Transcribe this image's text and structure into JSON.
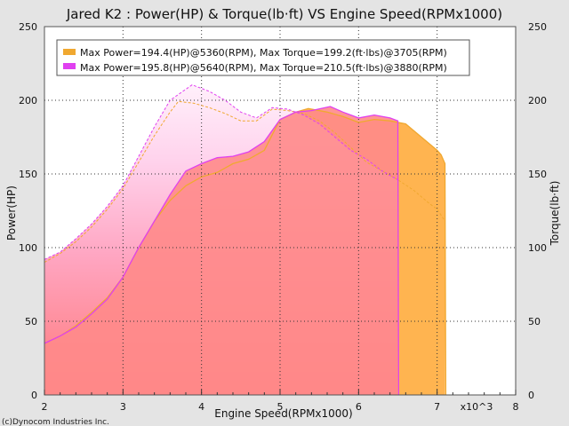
{
  "chart_data": {
    "type": "line",
    "title": "Jared K2 : Power(HP) & Torque(lb·ft) VS Engine Speed(RPMx1000)",
    "xlabel": "Engine Speed(RPMx1000)",
    "ylabel": "Power(HP)",
    "y2label": "Torque(lb·ft)",
    "xlim": [
      2,
      8
    ],
    "ylim": [
      0,
      250
    ],
    "y2lim": [
      0,
      250
    ],
    "x_ticks": [
      "2",
      "3",
      "4",
      "5",
      "6",
      "7",
      "8"
    ],
    "x_multiplier": "x10^3",
    "y_ticks": [
      "0",
      "50",
      "100",
      "150",
      "200",
      "250"
    ],
    "y2_ticks": [
      "0",
      "50",
      "100",
      "150",
      "200",
      "250"
    ],
    "grid": true,
    "legend_position": "top-left",
    "series": [
      {
        "name": "Max Power=194.4(HP)@5360(RPM), Max Torque=199.2(ft·lbs)@3705(RPM)",
        "color": "#f0a830",
        "power": [
          [
            2.0,
            35
          ],
          [
            2.2,
            40
          ],
          [
            2.4,
            47
          ],
          [
            2.6,
            56
          ],
          [
            2.8,
            66
          ],
          [
            3.0,
            80
          ],
          [
            3.2,
            100
          ],
          [
            3.4,
            118
          ],
          [
            3.6,
            132
          ],
          [
            3.8,
            142
          ],
          [
            4.0,
            148
          ],
          [
            4.2,
            151
          ],
          [
            4.4,
            157
          ],
          [
            4.6,
            160
          ],
          [
            4.8,
            166
          ],
          [
            5.0,
            187
          ],
          [
            5.2,
            192
          ],
          [
            5.36,
            194.4
          ],
          [
            5.6,
            192
          ],
          [
            5.8,
            189
          ],
          [
            6.0,
            185
          ],
          [
            6.2,
            187
          ],
          [
            6.4,
            186
          ],
          [
            6.6,
            184
          ],
          [
            6.8,
            175
          ],
          [
            7.0,
            166
          ],
          [
            7.05,
            163
          ],
          [
            7.1,
            157
          ]
        ],
        "torque": [
          [
            2.0,
            90
          ],
          [
            2.2,
            96
          ],
          [
            2.4,
            104
          ],
          [
            2.6,
            114
          ],
          [
            2.8,
            126
          ],
          [
            3.0,
            140
          ],
          [
            3.2,
            158
          ],
          [
            3.4,
            176
          ],
          [
            3.6,
            192
          ],
          [
            3.705,
            199.2
          ],
          [
            3.9,
            198
          ],
          [
            4.1,
            195
          ],
          [
            4.3,
            191
          ],
          [
            4.5,
            186
          ],
          [
            4.7,
            186
          ],
          [
            4.9,
            194
          ],
          [
            5.1,
            193
          ],
          [
            5.3,
            191
          ],
          [
            5.5,
            186
          ],
          [
            5.7,
            178
          ],
          [
            5.9,
            168
          ],
          [
            6.1,
            158
          ],
          [
            6.3,
            152
          ],
          [
            6.5,
            146
          ],
          [
            6.7,
            139
          ],
          [
            6.9,
            130
          ],
          [
            7.0,
            126
          ],
          [
            7.1,
            118
          ]
        ]
      },
      {
        "name": "Max Power=195.8(HP)@5640(RPM), Max Torque=210.5(ft·lbs)@3880(RPM)",
        "color": "#e040f0",
        "power": [
          [
            2.0,
            35
          ],
          [
            2.2,
            40
          ],
          [
            2.4,
            46
          ],
          [
            2.6,
            55
          ],
          [
            2.8,
            65
          ],
          [
            3.0,
            80
          ],
          [
            3.2,
            100
          ],
          [
            3.4,
            118
          ],
          [
            3.6,
            136
          ],
          [
            3.8,
            152
          ],
          [
            4.0,
            157
          ],
          [
            4.2,
            161
          ],
          [
            4.4,
            162
          ],
          [
            4.6,
            165
          ],
          [
            4.8,
            172
          ],
          [
            5.0,
            187
          ],
          [
            5.2,
            192
          ],
          [
            5.4,
            193
          ],
          [
            5.64,
            195.8
          ],
          [
            5.8,
            192
          ],
          [
            6.0,
            188
          ],
          [
            6.2,
            190
          ],
          [
            6.4,
            188
          ],
          [
            6.5,
            186
          ]
        ],
        "torque": [
          [
            2.0,
            92
          ],
          [
            2.2,
            97
          ],
          [
            2.4,
            106
          ],
          [
            2.6,
            116
          ],
          [
            2.8,
            128
          ],
          [
            3.0,
            142
          ],
          [
            3.2,
            162
          ],
          [
            3.4,
            182
          ],
          [
            3.6,
            200
          ],
          [
            3.88,
            210.5
          ],
          [
            4.1,
            206
          ],
          [
            4.3,
            200
          ],
          [
            4.5,
            192
          ],
          [
            4.7,
            188
          ],
          [
            4.9,
            195
          ],
          [
            5.1,
            194
          ],
          [
            5.3,
            190
          ],
          [
            5.5,
            184
          ],
          [
            5.7,
            175
          ],
          [
            5.9,
            166
          ],
          [
            6.1,
            160
          ],
          [
            6.3,
            152
          ],
          [
            6.5,
            146
          ]
        ]
      }
    ]
  },
  "copyright": "(c)Dynocom Industries Inc."
}
